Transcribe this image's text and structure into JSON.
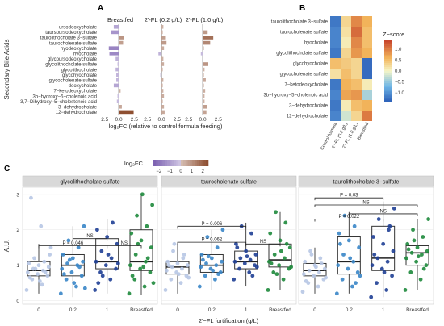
{
  "panel_letters": {
    "a": "A",
    "b": "B",
    "c": "C"
  },
  "colors": {
    "breastfed": "#1e8a3c",
    "ff_1": "#1f3f95",
    "ff_02": "#3a86c8",
    "control": "#b7c6e4",
    "strip": "#d9d9d9",
    "fc_neg": "#7a5fb0",
    "fc_pos": "#8b4a2c"
  },
  "chart_data": [
    {
      "type": "bar",
      "panel": "A",
      "orientation": "horizontal",
      "xlabel": "log₂FC (relative to control formula feeding)",
      "ylabel": "Secondary Bile Acids",
      "facets": [
        "Breastfed",
        "2′-FL (0.2 g/L)",
        "2′-FL (1.0 g/L)"
      ],
      "categories": [
        "ursodeoxycholate",
        "taursoursodeoxycholate",
        "taurolithocholate 3−sulfate",
        "taurocholenate sulfate",
        "hyodeoxycholate",
        "hyocholate",
        "glycoursodeoxycholate",
        "glycolithocholate sulfate",
        "glycolithocholate",
        "glycohyocholate",
        "glycocholenate sulfate",
        "deoxycholate",
        "7−ketodeoxycholate",
        "3b−hydroxy−5−cholenoic acid",
        "3,7−Dihydroxy−5−cholestenoic acid",
        "3−dehydrocholate",
        "12−dehydrocholate"
      ],
      "x_ticks": [
        "−2.5",
        "0.0",
        "2.5"
      ],
      "xlim": [
        -3,
        3.5
      ],
      "series": [
        {
          "name": "Breastfed",
          "values": [
            -0.8,
            -1.2,
            0.9,
            0.7,
            -1.6,
            -1.5,
            -0.5,
            -0.2,
            -0.5,
            -0.4,
            -0.4,
            -0.8,
            0.3,
            -0.2,
            -0.3,
            0.5,
            2.4
          ]
        },
        {
          "name": "2′-FL (0.2 g/L)",
          "values": [
            0.3,
            0.2,
            0.7,
            0.8,
            0.4,
            -0.5,
            0.3,
            0.4,
            0.2,
            -0.2,
            0.3,
            0.2,
            0.3,
            0.4,
            0.2,
            0.4,
            0.5
          ]
        },
        {
          "name": "2′-FL (1.0 g/L)",
          "values": [
            0.1,
            0.8,
            1.7,
            1.2,
            0.2,
            -0.3,
            0.1,
            0.9,
            0.3,
            0.2,
            0.5,
            0.2,
            0.4,
            0.3,
            0.3,
            0.7,
            0.6
          ]
        }
      ],
      "legend": {
        "title": "log₂FC",
        "ticks": [
          "−2",
          "−1",
          "0",
          "1",
          "2"
        ],
        "range": [
          -2.5,
          2.5
        ]
      }
    },
    {
      "type": "heatmap",
      "panel": "B",
      "rows": [
        "taurolithocholate 3−sulfate",
        "taurocholenate sulfate",
        "hyocholate",
        "glycolithocholate sulfate",
        "glycohyocholate",
        "glycocholenate sulfate",
        "7−ketodeoxycholate",
        "3b−hydroxy−5−cholenoic acid",
        "3−dehydrocholate",
        "12−dehydrocholate"
      ],
      "columns": [
        "Control formula",
        "2′−FL (0.2 g/L)",
        "2′−FL (1.0 g/L)",
        "Breastfed"
      ],
      "values": [
        [
          -1.2,
          0.3,
          0.9,
          0.6
        ],
        [
          -1.1,
          0.2,
          1.1,
          0.5
        ],
        [
          -1.1,
          0.1,
          0.9,
          0.5
        ],
        [
          -1.2,
          0.3,
          0.8,
          0.6
        ],
        [
          0.5,
          0.4,
          0.3,
          -1.3
        ],
        [
          0.2,
          0.5,
          0.3,
          -1.3
        ],
        [
          -1.2,
          0.6,
          0.5,
          0.1
        ],
        [
          -1.1,
          0.7,
          0.8,
          -0.4
        ],
        [
          -1.2,
          0.1,
          0.5,
          0.6
        ],
        [
          -1.1,
          -0.2,
          0.3,
          1.0
        ]
      ],
      "legend": {
        "title": "Z−score",
        "ticks": [
          "1.0",
          "0.5",
          "0.0",
          "−0.5",
          "−1.0"
        ],
        "range": [
          -1.4,
          1.4
        ]
      }
    },
    {
      "type": "box",
      "panel": "C",
      "ylabel": "A.U.",
      "xlabel": "2′−FL fortification (g/L)",
      "groups": [
        "0",
        "0.2",
        "1",
        "Breastfed"
      ],
      "y_ticks": [
        "0",
        "1",
        "2",
        "3"
      ],
      "ylim": [
        -0.1,
        3.2
      ],
      "facets": [
        {
          "title": "glycolithocholate sulfate",
          "boxes": [
            {
              "q1": 0.7,
              "median": 0.85,
              "q3": 1.1,
              "lo": 0.2,
              "hi": 1.6
            },
            {
              "q1": 0.7,
              "median": 1.0,
              "q3": 1.3,
              "lo": 0.1,
              "hi": 2.1
            },
            {
              "q1": 0.9,
              "median": 1.1,
              "q3": 1.75,
              "lo": 0.2,
              "hi": 2.3
            },
            {
              "q1": 0.85,
              "median": 1.1,
              "q3": 2.0,
              "lo": 0.15,
              "hi": 3.0
            }
          ],
          "points": [
            [
              0.3,
              0.45,
              0.6,
              0.7,
              0.75,
              0.8,
              0.85,
              0.9,
              0.95,
              1.0,
              1.05,
              1.1,
              1.2,
              1.3,
              0.55,
              0.65,
              0.8,
              0.9,
              1.5,
              2.1,
              2.9
            ],
            [
              0.2,
              0.4,
              0.6,
              0.7,
              0.8,
              0.9,
              1.0,
              1.05,
              1.1,
              1.2,
              1.3,
              1.5,
              1.7,
              2.1,
              0.5,
              0.75,
              0.95,
              1.15,
              0.35
            ],
            [
              0.3,
              0.6,
              0.8,
              0.9,
              1.0,
              1.1,
              1.2,
              1.4,
              1.6,
              1.8,
              2.0,
              2.2,
              0.7,
              1.05,
              1.3,
              0.5
            ],
            [
              0.2,
              0.4,
              0.6,
              0.8,
              0.9,
              1.0,
              1.1,
              1.3,
              1.5,
              1.7,
              1.9,
              2.1,
              2.4,
              2.7,
              3.0,
              0.7,
              1.2,
              1.6,
              0.5,
              0.95
            ]
          ],
          "brackets": [
            {
              "from": 0,
              "to": 2,
              "label": "P = 0.046",
              "y": 1.55
            },
            {
              "from": 1,
              "to": 2,
              "label": "NS",
              "y": 1.75
            },
            {
              "from": 2,
              "to": 3,
              "label": "NS",
              "y": 1.55
            }
          ]
        },
        {
          "title": "taurocholenate sulfate",
          "boxes": [
            {
              "q1": 0.75,
              "median": 0.95,
              "q3": 1.1,
              "lo": 0.2,
              "hi": 1.6
            },
            {
              "q1": 0.8,
              "median": 1.0,
              "q3": 1.3,
              "lo": 0.3,
              "hi": 2.0
            },
            {
              "q1": 0.9,
              "median": 1.1,
              "q3": 1.4,
              "lo": 0.4,
              "hi": 2.2
            },
            {
              "q1": 0.95,
              "median": 1.15,
              "q3": 1.6,
              "lo": 0.3,
              "hi": 2.5
            }
          ],
          "points": [
            [
              0.3,
              0.5,
              0.6,
              0.7,
              0.8,
              0.85,
              0.9,
              0.95,
              1.0,
              1.05,
              1.1,
              1.2,
              1.4,
              0.65,
              0.75,
              1.0,
              1.3,
              1.6
            ],
            [
              0.4,
              0.6,
              0.7,
              0.8,
              0.9,
              0.95,
              1.0,
              1.05,
              1.1,
              1.2,
              1.3,
              1.5,
              1.8,
              2.0,
              0.85,
              1.15,
              0.75,
              1.25
            ],
            [
              0.6,
              0.8,
              0.9,
              1.0,
              1.05,
              1.1,
              1.15,
              1.2,
              1.3,
              1.4,
              1.6,
              1.9,
              2.1,
              0.95,
              1.25,
              1.5,
              0.7
            ],
            [
              0.3,
              0.6,
              0.8,
              0.9,
              1.0,
              1.1,
              1.2,
              1.3,
              1.5,
              1.7,
              1.9,
              2.2,
              2.5,
              0.95,
              1.4,
              1.05,
              1.6,
              0.75
            ]
          ],
          "brackets": [
            {
              "from": 0,
              "to": 2,
              "label": "P = 0.006",
              "y": 2.1
            },
            {
              "from": 0,
              "to": 2,
              "label": "P = 0.062",
              "y": 1.65
            },
            {
              "from": 2,
              "to": 3,
              "label": "NS",
              "y": 1.6
            }
          ]
        },
        {
          "title": "taurolithocholate 3−sulfate",
          "boxes": [
            {
              "q1": 0.7,
              "median": 0.85,
              "q3": 1.05,
              "lo": 0.2,
              "hi": 1.5
            },
            {
              "q1": 0.75,
              "median": 1.1,
              "q3": 1.8,
              "lo": 0.2,
              "hi": 2.5
            },
            {
              "q1": 0.85,
              "median": 1.2,
              "q3": 2.1,
              "lo": 0.1,
              "hi": 2.8
            },
            {
              "q1": 1.0,
              "median": 1.35,
              "q3": 1.55,
              "lo": 0.3,
              "hi": 2.3
            }
          ],
          "points": [
            [
              0.25,
              0.4,
              0.5,
              0.6,
              0.7,
              0.75,
              0.8,
              0.85,
              0.9,
              1.0,
              1.1,
              1.2,
              1.4,
              0.65,
              0.95,
              0.55,
              1.05,
              1.3
            ],
            [
              0.2,
              0.4,
              0.6,
              0.8,
              0.9,
              1.0,
              1.1,
              1.3,
              1.5,
              1.7,
              1.9,
              2.1,
              2.4,
              0.7,
              1.2,
              1.6,
              0.5
            ],
            [
              0.1,
              0.3,
              0.5,
              0.7,
              0.9,
              1.0,
              1.1,
              1.2,
              1.4,
              1.6,
              1.8,
              2.0,
              2.3,
              2.6,
              0.8,
              1.3,
              2.1
            ],
            [
              0.3,
              0.6,
              0.8,
              1.0,
              1.1,
              1.2,
              1.3,
              1.35,
              1.4,
              1.5,
              1.6,
              1.8,
              2.0,
              2.3,
              1.25,
              1.45,
              0.9,
              1.7
            ]
          ],
          "brackets": [
            {
              "from": 0,
              "to": 2,
              "label": "P = 0.03",
              "y": 2.9
            },
            {
              "from": 0,
              "to": 3,
              "label": "NS",
              "y": 2.7
            },
            {
              "from": 1,
              "to": 3,
              "label": "NS",
              "y": 2.45
            },
            {
              "from": 0,
              "to": 2,
              "label": "P = 0.022",
              "y": 2.3
            }
          ]
        }
      ]
    }
  ]
}
